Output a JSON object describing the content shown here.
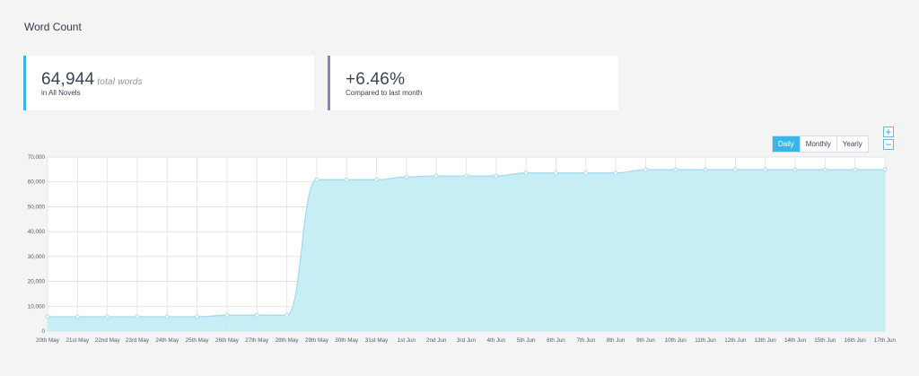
{
  "header": {
    "title": "Word Count"
  },
  "stats": [
    {
      "value": "64,944",
      "unit": "total words",
      "caption": "in All Novels",
      "color": "#3ab6e6"
    },
    {
      "value": "+6.46%",
      "unit": "",
      "caption": "Compared to last month",
      "color": "#8a82b8"
    }
  ],
  "controls": {
    "range_buttons": [
      {
        "label": "Daily",
        "active": true
      },
      {
        "label": "Monthly",
        "active": false
      },
      {
        "label": "Yearly",
        "active": false
      }
    ],
    "zoom_in": "+",
    "zoom_out": "−"
  },
  "chart_data": {
    "type": "area",
    "title": "",
    "xlabel": "",
    "ylabel": "",
    "ylim": [
      0,
      70000
    ],
    "yticks": [
      0,
      10000,
      20000,
      30000,
      40000,
      50000,
      60000,
      70000
    ],
    "ytick_labels": [
      "0",
      "10,000",
      "20,000",
      "30,000",
      "40,000",
      "50,000",
      "60,000",
      "70,000"
    ],
    "grid": true,
    "legend": "none",
    "colors": {
      "fill": "#c4ecf4",
      "line": "#a3d8ee",
      "marker": "#ffffff"
    },
    "categories": [
      "20th May",
      "21st May",
      "22nd May",
      "23rd May",
      "24th May",
      "25th May",
      "26th May",
      "27th May",
      "28th May",
      "29th May",
      "30th May",
      "31st May",
      "1st Jun",
      "2nd Jun",
      "3rd Jun",
      "4th Jun",
      "5th Jun",
      "6th Jun",
      "7th Jun",
      "8th Jun",
      "9th Jun",
      "10th Jun",
      "11th Jun",
      "12th Jun",
      "13th Jun",
      "14th Jun",
      "15th Jun",
      "16th Jun",
      "17th Jun"
    ],
    "series": [
      {
        "values": [
          5800,
          5800,
          5800,
          5800,
          5800,
          5800,
          6400,
          6400,
          6400,
          60900,
          60900,
          60900,
          62000,
          62400,
          62400,
          62400,
          63600,
          63600,
          63600,
          63600,
          64900,
          64900,
          64900,
          64900,
          64900,
          64900,
          64900,
          64900,
          64944
        ]
      }
    ]
  }
}
